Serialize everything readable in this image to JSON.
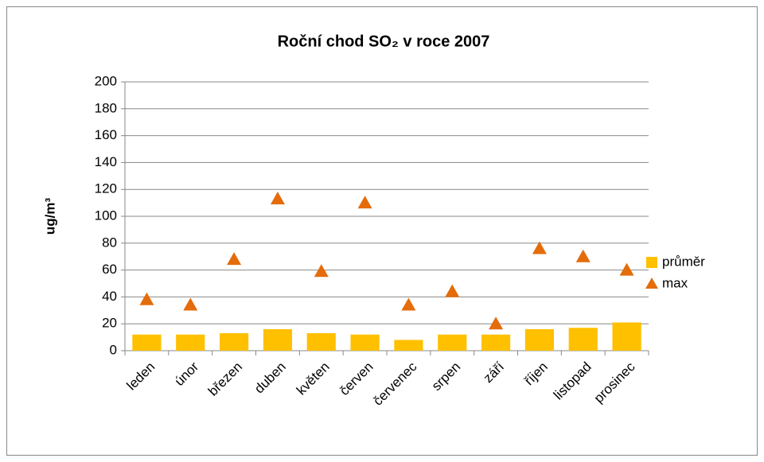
{
  "chart_data": {
    "type": "combo",
    "title": "Roční chod SO₂ v roce 2007",
    "y_label": "ug/m³",
    "categories": [
      "leden",
      "únor",
      "březen",
      "duben",
      "květen",
      "červen",
      "červenec",
      "srpen",
      "září",
      "říjen",
      "listopad",
      "prosinec"
    ],
    "series": [
      {
        "name": "průměr",
        "type": "bar",
        "color": "#ffc000",
        "values": [
          12,
          12,
          13,
          16,
          13,
          12,
          8,
          12,
          12,
          16,
          17,
          21
        ]
      },
      {
        "name": "max",
        "type": "scatter",
        "color": "#e46c0a",
        "values": [
          38,
          34,
          68,
          113,
          59,
          110,
          34,
          44,
          20,
          76,
          70,
          60
        ]
      }
    ],
    "ylim": [
      0,
      200
    ],
    "yticks": [
      0,
      20,
      40,
      60,
      80,
      100,
      120,
      140,
      160,
      180,
      200
    ],
    "grid": true,
    "legend": "right"
  }
}
